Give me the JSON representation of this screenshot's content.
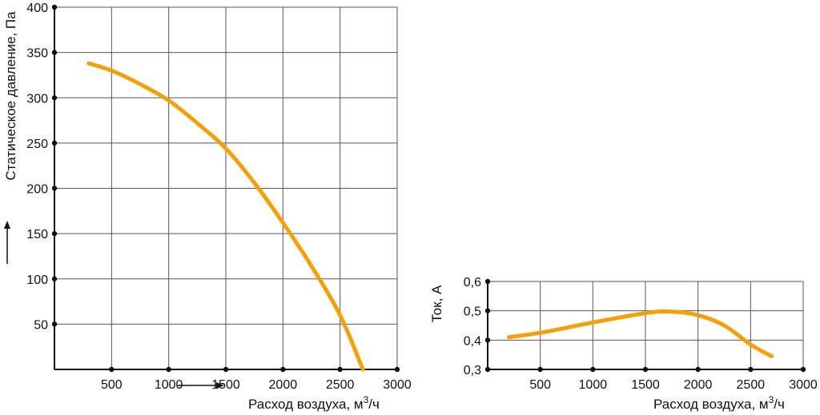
{
  "colors": {
    "curve": "#f5a00a",
    "grid": "#555555",
    "axis": "#111111"
  },
  "chart_data": [
    {
      "type": "line",
      "title": "",
      "xlabel": "Расход воздуха, м",
      "xlabel_sup": "3",
      "xlabel_suffix": "/ч",
      "ylabel": "Статическое давление, Па",
      "xlim": [
        0,
        3000
      ],
      "ylim": [
        0,
        400
      ],
      "xticks": [
        500,
        1000,
        1500,
        2000,
        2500,
        3000
      ],
      "yticks": [
        50,
        100,
        150,
        200,
        250,
        300,
        350,
        400
      ],
      "grid": true,
      "decimal": ".",
      "series": [
        {
          "x": [
            300,
            500,
            750,
            1000,
            1250,
            1500,
            1750,
            2000,
            2250,
            2500,
            2700
          ],
          "y": [
            338,
            330,
            315,
            297,
            272,
            244,
            206,
            162,
            114,
            60,
            0
          ]
        }
      ]
    },
    {
      "type": "line",
      "title": "",
      "xlabel": "Расход воздуха, м",
      "xlabel_sup": "3",
      "xlabel_suffix": "/ч",
      "ylabel": "Ток, А",
      "xlim": [
        0,
        3000
      ],
      "ylim": [
        0.3,
        0.6
      ],
      "xticks": [
        500,
        1000,
        1500,
        2000,
        2500,
        3000
      ],
      "yticks": [
        0.3,
        0.4,
        0.5,
        0.6
      ],
      "grid": true,
      "decimal": ",",
      "series": [
        {
          "x": [
            200,
            500,
            1000,
            1500,
            1750,
            2000,
            2250,
            2500,
            2700
          ],
          "y": [
            0.41,
            0.425,
            0.46,
            0.492,
            0.497,
            0.485,
            0.45,
            0.385,
            0.345
          ]
        }
      ]
    }
  ]
}
